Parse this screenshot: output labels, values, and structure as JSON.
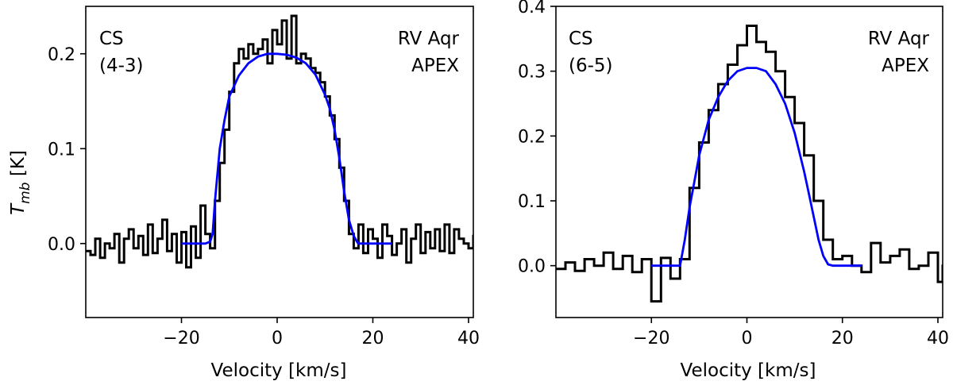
{
  "chart_data": [
    {
      "type": "line",
      "annotation_left": [
        "CS",
        "(4-3)"
      ],
      "annotation_right": [
        "RV Aqr",
        "APEX"
      ],
      "xlabel": "Velocity [km/s]",
      "ylabel": "T",
      "ylabel_sub": "mb",
      "ylabel_unit": " [K]",
      "xlim": [
        -40,
        41
      ],
      "ylim": [
        -0.078,
        0.25
      ],
      "xticks": [
        -20,
        0,
        20,
        40
      ],
      "xtick_labels": [
        "−20",
        "0",
        "20",
        "40"
      ],
      "yticks": [
        0.0,
        0.1,
        0.2
      ],
      "ytick_labels": [
        "0.0",
        "0.1",
        "0.2"
      ],
      "series": [
        {
          "name": "observed spectrum",
          "style": "steps",
          "color": "#000000",
          "x": [
            -40.0,
            -39.0,
            -38.0,
            -37.0,
            -36.0,
            -35.0,
            -34.0,
            -33.0,
            -32.0,
            -31.0,
            -30.0,
            -29.0,
            -28.0,
            -27.0,
            -26.0,
            -25.0,
            -24.0,
            -23.0,
            -22.0,
            -21.0,
            -20.0,
            -19.0,
            -18.0,
            -17.0,
            -16.0,
            -15.0,
            -14.0,
            -13.0,
            -12.0,
            -11.0,
            -10.0,
            -9.0,
            -8.0,
            -7.0,
            -6.0,
            -5.0,
            -4.0,
            -3.0,
            -2.0,
            -1.0,
            0.0,
            1.0,
            2.0,
            3.0,
            4.0,
            5.0,
            6.0,
            7.0,
            8.0,
            9.0,
            10.0,
            11.0,
            12.0,
            13.0,
            14.0,
            15.0,
            16.0,
            17.0,
            18.0,
            19.0,
            20.0,
            21.0,
            22.0,
            23.0,
            24.0,
            25.0,
            26.0,
            27.0,
            28.0,
            29.0,
            30.0,
            31.0,
            32.0,
            33.0,
            34.0,
            35.0,
            36.0,
            37.0,
            38.0,
            39.0,
            40.0,
            41.0
          ],
          "y": [
            -0.008,
            -0.012,
            0.005,
            -0.015,
            0.0,
            -0.005,
            0.01,
            -0.02,
            0.005,
            0.015,
            -0.005,
            0.008,
            -0.012,
            0.02,
            -0.01,
            0.005,
            0.025,
            -0.008,
            0.01,
            -0.02,
            0.012,
            -0.025,
            0.018,
            -0.015,
            0.04,
            0.01,
            -0.005,
            0.045,
            0.085,
            0.12,
            0.16,
            0.19,
            0.205,
            0.195,
            0.21,
            0.2,
            0.205,
            0.215,
            0.19,
            0.225,
            0.21,
            0.235,
            0.195,
            0.24,
            0.19,
            0.2,
            0.195,
            0.185,
            0.18,
            0.17,
            0.155,
            0.135,
            0.11,
            0.08,
            0.045,
            0.01,
            -0.005,
            0.02,
            -0.01,
            0.015,
            0.005,
            -0.015,
            0.02,
            0.008,
            -0.012,
            0.0,
            0.015,
            -0.02,
            0.005,
            0.02,
            -0.01,
            0.012,
            -0.005,
            0.015,
            -0.008,
            0.02,
            -0.01,
            0.015,
            0.005,
            0.0,
            -0.005,
            0.008
          ]
        },
        {
          "name": "model fit",
          "style": "smooth",
          "color": "#0000ff",
          "x": [
            -20,
            -15,
            -14,
            -13.5,
            -13,
            -12,
            -11,
            -10,
            -8,
            -6,
            -4,
            -2,
            0,
            2,
            4,
            6,
            8,
            10,
            11,
            12,
            13,
            14,
            15,
            16,
            16.8,
            17,
            20,
            24
          ],
          "y": [
            0.0,
            0.0,
            0.002,
            0.01,
            0.045,
            0.1,
            0.13,
            0.155,
            0.177,
            0.19,
            0.197,
            0.2,
            0.2,
            0.199,
            0.196,
            0.19,
            0.178,
            0.157,
            0.142,
            0.12,
            0.09,
            0.055,
            0.025,
            0.008,
            0.001,
            0.0,
            0.0,
            0.0
          ]
        }
      ]
    },
    {
      "type": "line",
      "annotation_left": [
        "CS",
        "(6-5)"
      ],
      "annotation_right": [
        "RV Aqr",
        "APEX"
      ],
      "xlabel": "Velocity [km/s]",
      "ylabel": "",
      "xlim": [
        -40,
        41
      ],
      "ylim": [
        -0.08,
        0.4
      ],
      "xticks": [
        -20,
        0,
        20,
        40
      ],
      "xtick_labels": [
        "−20",
        "0",
        "20",
        "40"
      ],
      "yticks": [
        0.0,
        0.1,
        0.2,
        0.3,
        0.4
      ],
      "ytick_labels": [
        "0.0",
        "0.1",
        "0.2",
        "0.3",
        "0.4"
      ],
      "series": [
        {
          "name": "observed spectrum",
          "style": "steps",
          "color": "#000000",
          "x": [
            -40,
            -38,
            -36,
            -34,
            -32,
            -30,
            -28,
            -26,
            -24,
            -22,
            -20,
            -18,
            -16,
            -14,
            -12,
            -10,
            -8,
            -6,
            -4,
            -2,
            0,
            2,
            4,
            6,
            8,
            10,
            12,
            14,
            16,
            18,
            20,
            22,
            24,
            26,
            28,
            30,
            32,
            34,
            36,
            38,
            40,
            41
          ],
          "y": [
            -0.005,
            0.005,
            -0.008,
            0.01,
            0.0,
            0.02,
            -0.005,
            0.015,
            -0.01,
            0.01,
            -0.055,
            0.012,
            -0.02,
            0.01,
            0.12,
            0.19,
            0.24,
            0.28,
            0.31,
            0.34,
            0.37,
            0.345,
            0.33,
            0.3,
            0.26,
            0.22,
            0.17,
            0.1,
            0.04,
            0.01,
            0.015,
            0.0,
            -0.01,
            0.035,
            0.005,
            0.015,
            0.025,
            -0.005,
            0.0,
            0.02,
            -0.025,
            0.0
          ]
        },
        {
          "name": "model fit",
          "style": "smooth",
          "color": "#0000ff",
          "x": [
            -20,
            -14,
            -13,
            -12,
            -11,
            -10,
            -8,
            -6,
            -4,
            -2,
            0,
            2,
            4,
            6,
            8,
            10,
            11,
            12,
            13,
            14,
            15,
            16,
            17,
            18,
            20,
            24
          ],
          "y": [
            0.0,
            0.0,
            0.04,
            0.09,
            0.13,
            0.17,
            0.225,
            0.26,
            0.285,
            0.3,
            0.305,
            0.305,
            0.3,
            0.28,
            0.25,
            0.205,
            0.175,
            0.145,
            0.11,
            0.075,
            0.04,
            0.015,
            0.002,
            0.0,
            0.0,
            0.0
          ]
        }
      ]
    }
  ]
}
